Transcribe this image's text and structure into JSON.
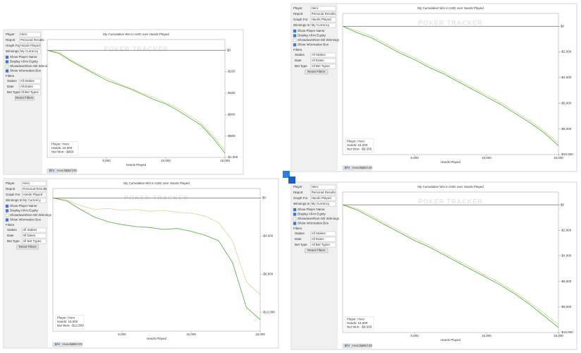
{
  "sidebar": {
    "fields": [
      {
        "label": "Player",
        "value": "Hero"
      },
      {
        "label": "Report",
        "value": "Personal Results"
      },
      {
        "label": "Graph For",
        "value": "Hands Played"
      },
      {
        "label": "Winnings In",
        "value": "My Currency"
      }
    ],
    "checks": [
      "Show Player Name",
      "Display All-In Equity",
      "Showdown/Non-SD Winnings",
      "Show Information Box"
    ],
    "filters_title": "Filters",
    "filters": [
      {
        "label": "Stakes",
        "value": "All Stakes"
      },
      {
        "label": "Date",
        "value": "All Dates"
      },
      {
        "label": "Bet Type",
        "value": "All Bet Types"
      }
    ],
    "reset": "Reset Filters",
    "tabs": [
      "$/hr",
      "Hands",
      "BB/100"
    ]
  },
  "watermark": "POKER TRACKER",
  "panels": [
    {
      "chart": {
        "type": "line",
        "title": "My Cumulative Win in USD over Hands Played",
        "x_label": "Hands Played",
        "x": [
          0,
          1000,
          2000,
          3000,
          4000,
          5000,
          6000,
          7000,
          8000,
          9000,
          10000,
          11000,
          12000,
          13000,
          14000,
          15000
        ],
        "xlim": [
          0,
          15000
        ],
        "xticks": [
          {
            "value": 5000,
            "label": "5,000"
          },
          {
            "value": 10000,
            "label": "10,000"
          },
          {
            "value": 15000,
            "label": "15,000"
          }
        ],
        "ylim": [
          -1000,
          100
        ],
        "yticks": [
          {
            "value": 0,
            "label": "$0"
          },
          {
            "value": -200,
            "label": "-$200"
          },
          {
            "value": -400,
            "label": "-$400"
          },
          {
            "value": -600,
            "label": "-$600"
          },
          {
            "value": -800,
            "label": "-$800"
          },
          {
            "value": -1000,
            "label": "-$1,000"
          }
        ],
        "series": [
          {
            "color": "#4caa3c",
            "values": [
              0,
              -30,
              -100,
              -160,
              -220,
              -280,
              -320,
              -360,
              -410,
              -460,
              -500,
              -560,
              -630,
              -700,
              -820,
              -960
            ]
          },
          {
            "color": "#c9d98a",
            "values": [
              0,
              -20,
              -90,
              -150,
              -210,
              -260,
              -310,
              -350,
              -400,
              -440,
              -490,
              -540,
              -610,
              -680,
              -800,
              -930
            ]
          }
        ],
        "info": [
          "Player: Hero",
          "Hands: 15,000",
          "Net Won: -$960"
        ]
      }
    },
    {
      "chart": {
        "type": "line",
        "title": "My Cumulative Win in USD over Hands Played",
        "x_label": "Hands Played",
        "x": [
          0,
          1000,
          2000,
          3000,
          4000,
          5000,
          6000,
          7000,
          8000,
          9000,
          10000,
          11000,
          12000,
          13000,
          14000,
          15000
        ],
        "xlim": [
          0,
          15000
        ],
        "xticks": [
          {
            "value": 5000,
            "label": "5,000"
          },
          {
            "value": 10000,
            "label": "10,000"
          },
          {
            "value": 15000,
            "label": "15,000"
          }
        ],
        "ylim": [
          -10000,
          1000
        ],
        "yticks": [
          {
            "value": 0,
            "label": "$0"
          },
          {
            "value": -2000,
            "label": "-$2,000"
          },
          {
            "value": -4000,
            "label": "-$4,000"
          },
          {
            "value": -6000,
            "label": "-$6,000"
          },
          {
            "value": -8000,
            "label": "-$8,000"
          },
          {
            "value": -10000,
            "label": "-$10,000"
          }
        ],
        "series": [
          {
            "color": "#4caa3c",
            "values": [
              0,
              -500,
              -900,
              -1500,
              -2100,
              -2600,
              -3200,
              -3700,
              -4300,
              -4900,
              -5500,
              -6100,
              -6800,
              -7500,
              -8300,
              -9300
            ]
          },
          {
            "color": "#c9d98a",
            "values": [
              0,
              -350,
              -750,
              -1350,
              -1950,
              -2450,
              -3050,
              -3550,
              -4150,
              -4750,
              -5350,
              -5950,
              -6650,
              -7350,
              -8150,
              -9100
            ]
          }
        ],
        "info": [
          "Player: Hero",
          "Hands: 15,000",
          "Net Won: -$9,300"
        ]
      }
    },
    {
      "chart": {
        "type": "line",
        "title": "My Cumulative Win in USD over Hands Played",
        "x_label": "Hands Played",
        "x": [
          0,
          1000,
          2000,
          3000,
          4000,
          5000,
          6000,
          7000,
          8000,
          9000,
          10000,
          11000,
          12000,
          13000,
          14000,
          15000
        ],
        "xlim": [
          0,
          15000
        ],
        "xticks": [
          {
            "value": 5000,
            "label": "5,000"
          },
          {
            "value": 10000,
            "label": "10,000"
          },
          {
            "value": 15000,
            "label": "15,000"
          }
        ],
        "ylim": [
          -14000,
          1000
        ],
        "yticks": [
          {
            "value": 0,
            "label": "$0"
          },
          {
            "value": -4000,
            "label": "-$4,000"
          },
          {
            "value": -8000,
            "label": "-$8,000"
          },
          {
            "value": -12000,
            "label": "-$12,000"
          }
        ],
        "series": [
          {
            "color": "#4caa3c",
            "values": [
              0,
              -300,
              -1200,
              -2000,
              -2500,
              -2800,
              -3000,
              -3100,
              -3300,
              -3200,
              -3500,
              -3900,
              -4500,
              -6800,
              -11500,
              -12800
            ]
          },
          {
            "color": "#d8d49a",
            "values": [
              0,
              -200,
              -800,
              -1200,
              -1100,
              -1300,
              -1200,
              -1400,
              -1300,
              -1500,
              -1600,
              -1900,
              -2600,
              -4500,
              -8800,
              -10200
            ]
          }
        ],
        "info": [
          "Player: Hero",
          "Hands: 15,000",
          "Net Won: -$12,800"
        ]
      }
    },
    {
      "chart": {
        "type": "line",
        "title": "My Cumulative Win in USD over Hands Played",
        "x_label": "Hands Played",
        "x": [
          0,
          1000,
          2000,
          3000,
          4000,
          5000,
          6000,
          7000,
          8000,
          9000,
          10000,
          11000,
          12000,
          13000,
          14000,
          15000
        ],
        "xlim": [
          0,
          15000
        ],
        "xticks": [
          {
            "value": 5000,
            "label": "5,000"
          },
          {
            "value": 10000,
            "label": "10,000"
          },
          {
            "value": 15000,
            "label": "15,000"
          }
        ],
        "ylim": [
          -10000,
          1000
        ],
        "yticks": [
          {
            "value": 0,
            "label": "$0"
          },
          {
            "value": -2000,
            "label": "-$2,000"
          },
          {
            "value": -4000,
            "label": "-$4,000"
          },
          {
            "value": -6000,
            "label": "-$6,000"
          },
          {
            "value": -8000,
            "label": "-$8,000"
          },
          {
            "value": -10000,
            "label": "-$10,000"
          }
        ],
        "series": [
          {
            "color": "#4caa3c",
            "values": [
              0,
              -400,
              -1000,
              -1600,
              -2200,
              -2800,
              -3300,
              -3900,
              -4500,
              -5100,
              -5700,
              -6300,
              -7000,
              -7800,
              -8700,
              -9600
            ]
          },
          {
            "color": "#c9d98a",
            "values": [
              0,
              -300,
              -850,
              -1450,
              -2050,
              -2650,
              -3150,
              -3750,
              -4350,
              -4950,
              -5550,
              -6150,
              -6850,
              -7650,
              -8500,
              -9400
            ]
          }
        ],
        "info": [
          "Player: Hero",
          "Hands: 15,000",
          "Net Won: -$9,600"
        ]
      }
    }
  ]
}
